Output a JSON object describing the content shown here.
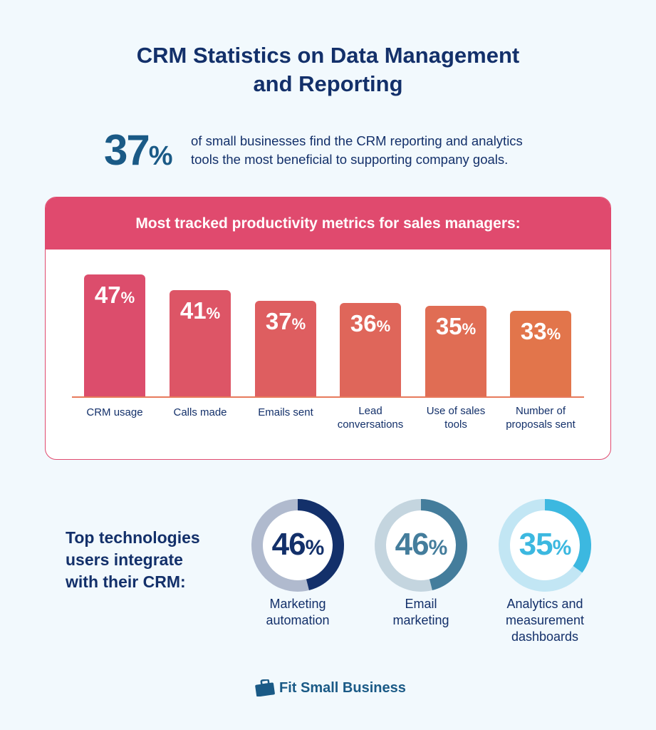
{
  "title_line1": "CRM Statistics on Data Management",
  "title_line2": "and Reporting",
  "headline_stat": {
    "value": "37",
    "unit": "%",
    "text_line1": "of small businesses find the CRM reporting and analytics",
    "text_line2": "tools the most beneficial to supporting company goals."
  },
  "chart_data": [
    {
      "type": "bar",
      "title": "Most tracked productivity metrics for sales managers:",
      "categories": [
        "CRM usage",
        "Calls made",
        "Emails sent",
        "Lead conversations",
        "Use of sales tools",
        "Number of proposals sent"
      ],
      "values": [
        47,
        41,
        37,
        36,
        35,
        33
      ],
      "unit": "%",
      "colors": [
        "#dc4d6c",
        "#dd5566",
        "#de5e60",
        "#df665a",
        "#e06d54",
        "#e2754b"
      ]
    },
    {
      "type": "pie",
      "title": "Top technologies users integrate with their CRM:",
      "categories": [
        "Marketing automation",
        "Email marketing",
        "Analytics and measurement dashboards"
      ],
      "values": [
        46,
        46,
        35
      ],
      "unit": "%",
      "colors": [
        {
          "fill": "#13306a",
          "track": "#b0bace"
        },
        {
          "fill": "#447d9c",
          "track": "#c4d5df"
        },
        {
          "fill": "#3cb8e0",
          "track": "#c2e6f4"
        }
      ]
    }
  ],
  "bar_label_lines": [
    [
      "CRM usage"
    ],
    [
      "Calls made"
    ],
    [
      "Emails sent"
    ],
    [
      "Lead",
      "conversations"
    ],
    [
      "Use of sales",
      "tools"
    ],
    [
      "Number of",
      "proposals sent"
    ]
  ],
  "donut_label_lines": [
    [
      "Marketing",
      "automation"
    ],
    [
      "Email",
      "marketing"
    ],
    [
      "Analytics and",
      "measurement",
      "dashboards"
    ]
  ],
  "tech_heading_lines": [
    "Top technologies",
    "users integrate",
    "with their CRM:"
  ],
  "brand": {
    "name": "Fit Small Business",
    "icon": "briefcase-icon",
    "color": "#1a5a86"
  }
}
